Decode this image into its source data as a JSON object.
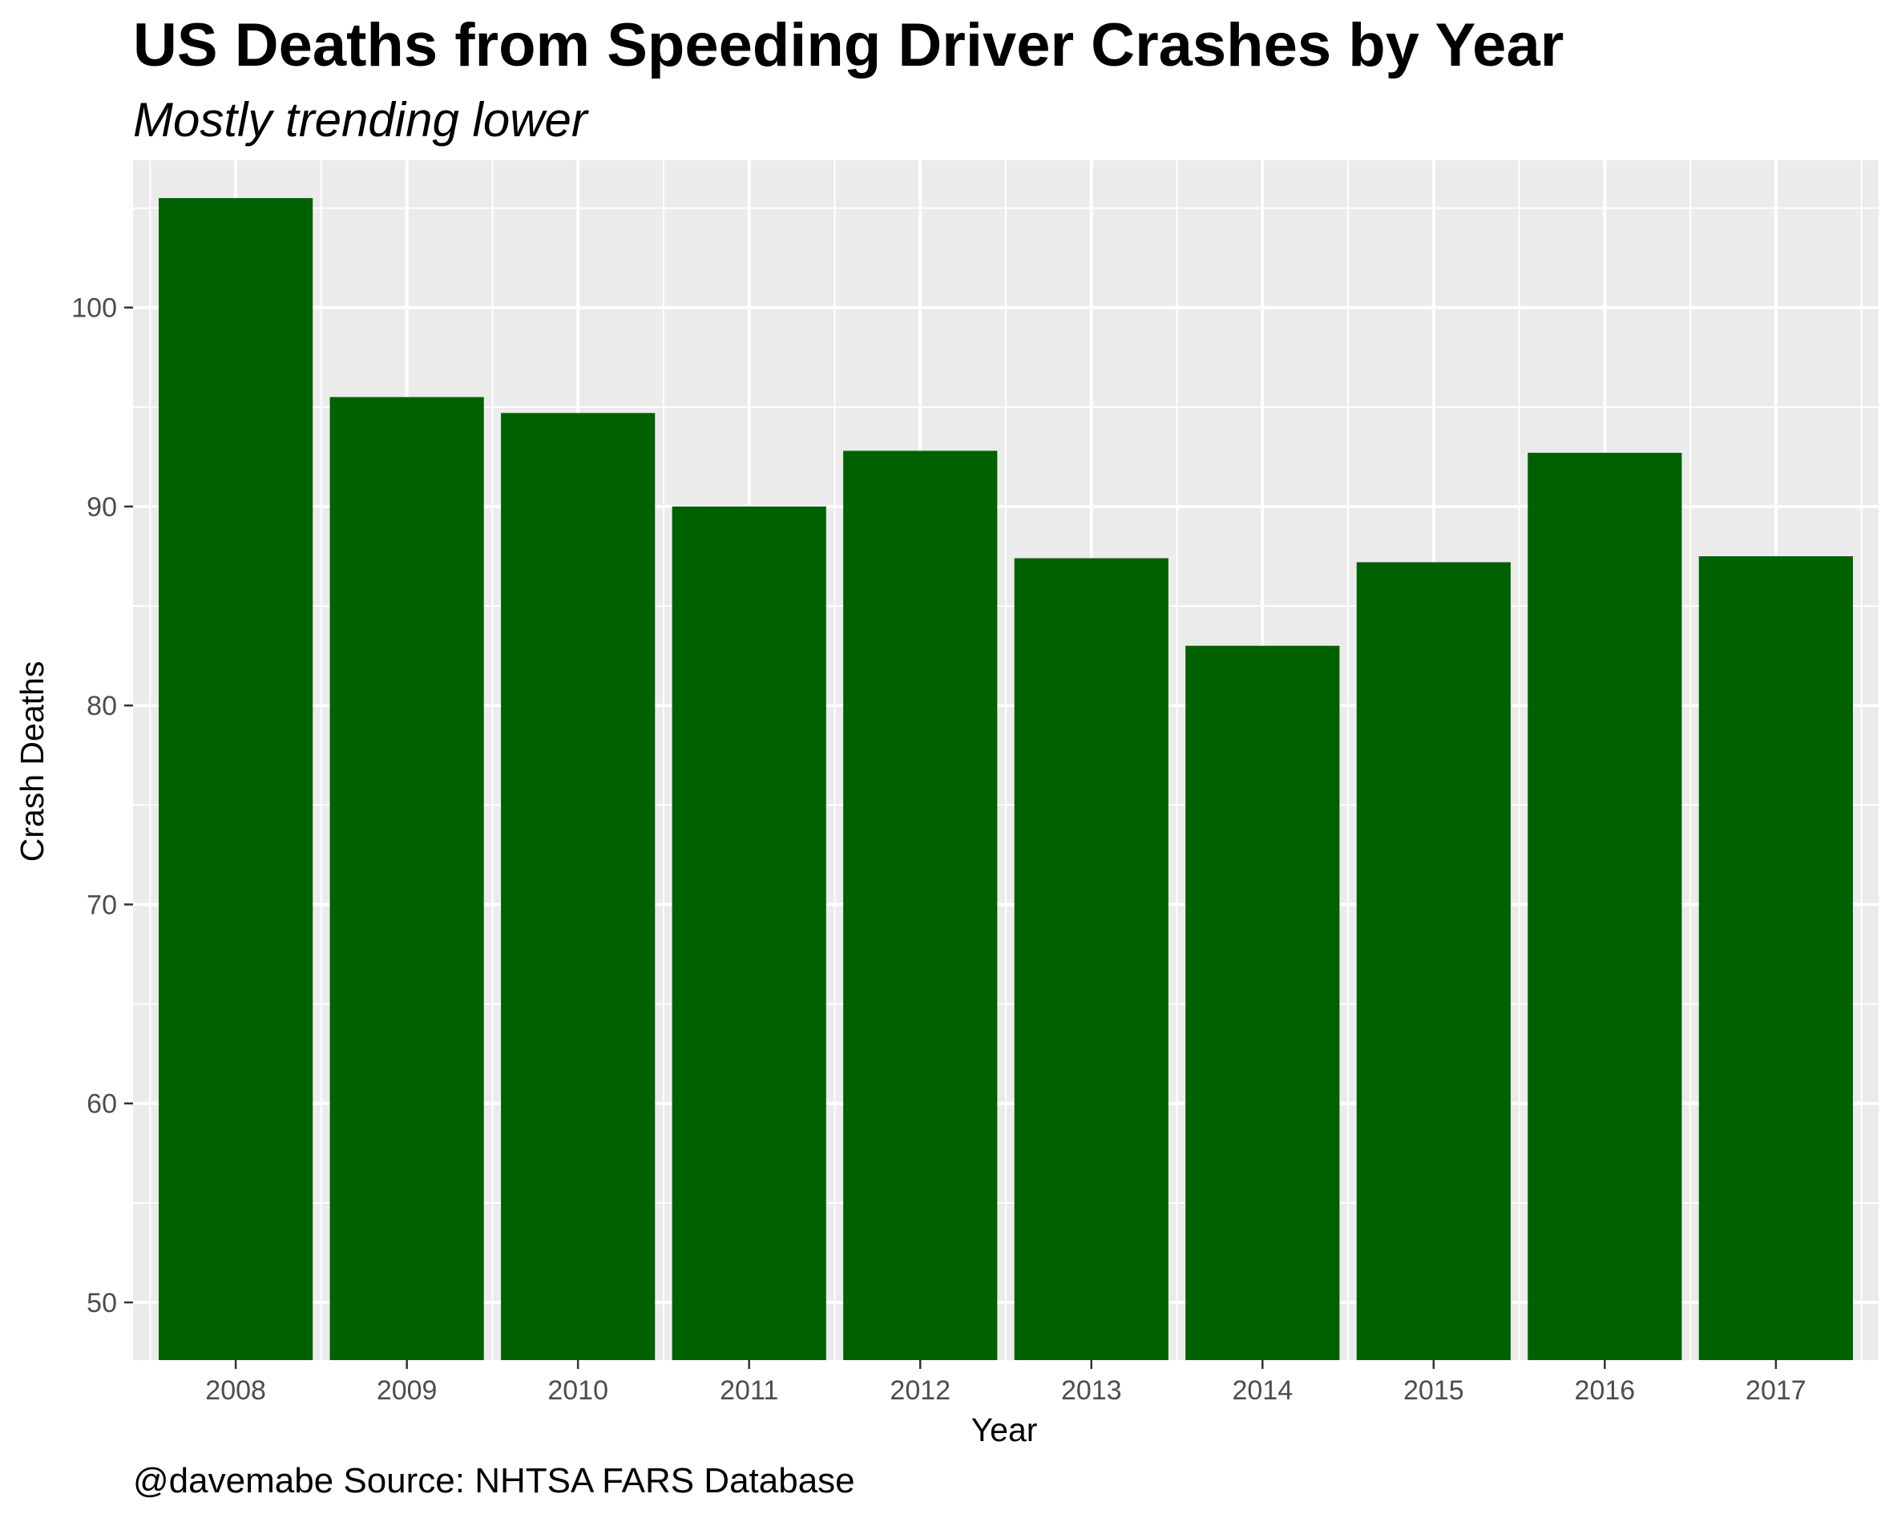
{
  "chart_data": {
    "type": "bar",
    "title": "US Deaths from Speeding Driver Crashes by Year",
    "subtitle": "Mostly trending lower",
    "xlabel": "Year",
    "ylabel": "Crash Deaths",
    "caption": "@davemabe Source: NHTSA FARS Database",
    "categories": [
      "2008",
      "2009",
      "2010",
      "2011",
      "2012",
      "2013",
      "2014",
      "2015",
      "2016",
      "2017"
    ],
    "values": [
      105.5,
      95.5,
      94.7,
      90.0,
      92.8,
      87.4,
      83.0,
      87.2,
      92.7,
      87.5
    ],
    "ylim": [
      47.1,
      107.4
    ],
    "yticks": [
      50,
      60,
      70,
      80,
      90,
      100
    ],
    "grid": true,
    "bar_color": "#006100",
    "panel_color": "#ebebeb",
    "grid_color": "#ffffff"
  }
}
